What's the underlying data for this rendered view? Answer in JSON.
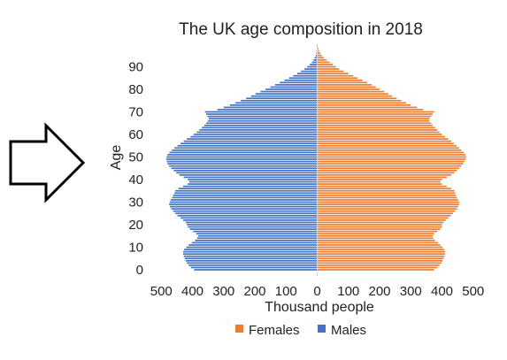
{
  "chart_data": {
    "type": "bar",
    "orientation": "horizontal",
    "title": "The UK age composition in 2018",
    "xlabel": "Thousand people",
    "ylabel": "Age",
    "xlim": [
      -500,
      500
    ],
    "x_ticks": [
      -500,
      -400,
      -300,
      -200,
      -100,
      0,
      100,
      200,
      300,
      400,
      500
    ],
    "x_tick_labels": [
      "500",
      "400",
      "300",
      "200",
      "100",
      "0",
      "100",
      "200",
      "300",
      "400",
      "500"
    ],
    "y_ticks": [
      0,
      10,
      20,
      30,
      40,
      50,
      60,
      70,
      80,
      90
    ],
    "ylim": [
      -1,
      101
    ],
    "grid": false,
    "legend_position": "bottom",
    "categories": [
      0,
      1,
      2,
      3,
      4,
      5,
      6,
      7,
      8,
      9,
      10,
      11,
      12,
      13,
      14,
      15,
      16,
      17,
      18,
      19,
      20,
      21,
      22,
      23,
      24,
      25,
      26,
      27,
      28,
      29,
      30,
      31,
      32,
      33,
      34,
      35,
      36,
      37,
      38,
      39,
      40,
      41,
      42,
      43,
      44,
      45,
      46,
      47,
      48,
      49,
      50,
      51,
      52,
      53,
      54,
      55,
      56,
      57,
      58,
      59,
      60,
      61,
      62,
      63,
      64,
      65,
      66,
      67,
      68,
      69,
      70,
      71,
      72,
      73,
      74,
      75,
      76,
      77,
      78,
      79,
      80,
      81,
      82,
      83,
      84,
      85,
      86,
      87,
      88,
      89,
      90,
      91,
      92,
      93,
      94,
      95,
      96,
      97,
      98,
      99,
      100
    ],
    "series": [
      {
        "name": "Females",
        "color": "#ED7D31",
        "values": [
          375,
          385,
          392,
          398,
          402,
          405,
          408,
          410,
          410,
          407,
          402,
          395,
          387,
          378,
          372,
          370,
          375,
          385,
          395,
          400,
          400,
          405,
          412,
          420,
          428,
          435,
          442,
          448,
          452,
          455,
          455,
          452,
          448,
          445,
          443,
          440,
          430,
          415,
          400,
          395,
          400,
          415,
          430,
          440,
          448,
          455,
          462,
          468,
          472,
          476,
          478,
          475,
          470,
          462,
          455,
          447,
          438,
          430,
          420,
          410,
          400,
          392,
          385,
          378,
          370,
          365,
          360,
          360,
          365,
          370,
          375,
          340,
          320,
          300,
          285,
          270,
          255,
          240,
          228,
          215,
          200,
          188,
          175,
          160,
          145,
          130,
          115,
          100,
          85,
          70,
          60,
          50,
          40,
          30,
          22,
          15,
          10,
          6,
          4,
          2,
          1
        ],
        "negative_side": false
      },
      {
        "name": "Males",
        "color": "#4472C4",
        "values": [
          395,
          405,
          412,
          418,
          422,
          425,
          428,
          430,
          430,
          427,
          420,
          412,
          402,
          392,
          385,
          382,
          388,
          398,
          408,
          415,
          418,
          422,
          430,
          438,
          448,
          455,
          462,
          468,
          472,
          475,
          473,
          470,
          465,
          462,
          458,
          455,
          445,
          430,
          415,
          410,
          415,
          428,
          442,
          452,
          460,
          468,
          475,
          480,
          482,
          484,
          483,
          480,
          474,
          466,
          458,
          448,
          438,
          428,
          418,
          406,
          396,
          386,
          378,
          370,
          362,
          356,
          350,
          348,
          352,
          356,
          360,
          320,
          300,
          280,
          262,
          245,
          228,
          212,
          198,
          182,
          166,
          150,
          135,
          120,
          105,
          90,
          77,
          64,
          52,
          41,
          32,
          24,
          17,
          12,
          8,
          5,
          3,
          2,
          1,
          1,
          0
        ],
        "negative_side": true
      }
    ]
  },
  "legend": {
    "items": [
      {
        "label": "Females",
        "color": "#ED7D31"
      },
      {
        "label": "Males",
        "color": "#4472C4"
      }
    ]
  },
  "decoration": {
    "arrow_icon": "right-arrow-outline-icon"
  }
}
